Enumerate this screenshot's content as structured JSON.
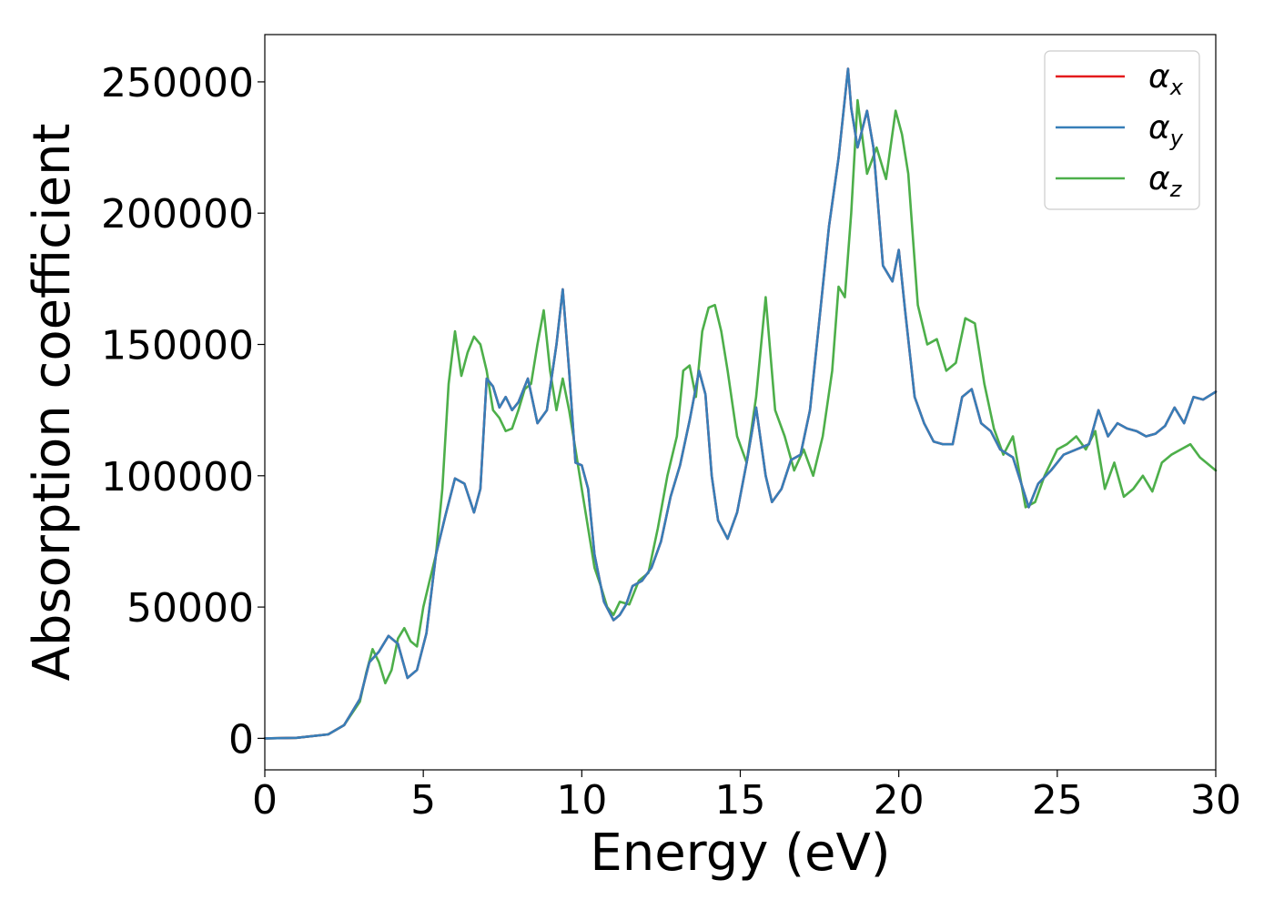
{
  "chart_data": {
    "type": "line",
    "xlabel": "Energy (eV)",
    "ylabel": "Absorption coefficient",
    "xlim": [
      0,
      30
    ],
    "ylim": [
      -12000,
      268000
    ],
    "xticks": [
      "0",
      "5",
      "10",
      "15",
      "20",
      "25",
      "30"
    ],
    "yticks": [
      "0",
      "50000",
      "100000",
      "150000",
      "200000",
      "250000"
    ],
    "grid": false,
    "legend_position": "top-right",
    "series": [
      {
        "name": "α_x",
        "label_main": "α",
        "label_sub": "x",
        "color": "#e41a1c",
        "x": [
          0,
          1,
          2,
          2.5,
          3,
          3.3,
          3.6,
          3.9,
          4.2,
          4.5,
          4.8,
          5.1,
          5.4,
          5.7,
          6,
          6.3,
          6.6,
          6.8,
          7,
          7.2,
          7.4,
          7.6,
          7.8,
          8,
          8.3,
          8.6,
          8.9,
          9.2,
          9.4,
          9.6,
          9.8,
          10,
          10.2,
          10.4,
          10.7,
          11,
          11.2,
          11.4,
          11.6,
          11.9,
          12.2,
          12.5,
          12.8,
          13.1,
          13.4,
          13.7,
          13.9,
          14.1,
          14.3,
          14.6,
          14.9,
          15.2,
          15.5,
          15.8,
          16,
          16.3,
          16.6,
          16.9,
          17.2,
          17.5,
          17.8,
          18.1,
          18.4,
          18.5,
          18.7,
          19,
          19.2,
          19.5,
          19.8,
          20,
          20.2,
          20.5,
          20.8,
          21.1,
          21.4,
          21.7,
          22,
          22.3,
          22.6,
          22.9,
          23.2,
          23.6,
          24.1,
          24.4,
          24.8,
          25.2,
          25.6,
          26,
          26.3,
          26.6,
          26.9,
          27.2,
          27.5,
          27.8,
          28.1,
          28.4,
          28.7,
          29,
          29.3,
          29.6,
          30
        ],
        "y": [
          0,
          200,
          1500,
          5000,
          15000,
          29000,
          33000,
          39000,
          36000,
          23000,
          26000,
          40000,
          70000,
          85000,
          99000,
          97000,
          86000,
          95000,
          137000,
          134000,
          126000,
          130000,
          125000,
          128000,
          137000,
          120000,
          125000,
          150000,
          171000,
          140000,
          105000,
          104000,
          95000,
          70000,
          52000,
          45000,
          47000,
          51000,
          58000,
          60000,
          65000,
          75000,
          92000,
          104000,
          121000,
          140000,
          131000,
          100000,
          83000,
          76000,
          86000,
          105000,
          126000,
          100000,
          90000,
          95000,
          106000,
          108000,
          125000,
          160000,
          195000,
          221000,
          255000,
          240000,
          225000,
          239000,
          225000,
          180000,
          174000,
          186000,
          163000,
          130000,
          120000,
          113000,
          112000,
          112000,
          130000,
          133000,
          120000,
          117000,
          110000,
          107000,
          88000,
          97000,
          102000,
          108000,
          110000,
          112000,
          125000,
          115000,
          120000,
          118000,
          117000,
          115000,
          116000,
          119000,
          126000,
          120000,
          130000,
          129000,
          132000
        ]
      },
      {
        "name": "α_y",
        "label_main": "α",
        "label_sub": "y",
        "color": "#377eb8",
        "x": [
          0,
          1,
          2,
          2.5,
          3,
          3.3,
          3.6,
          3.9,
          4.2,
          4.5,
          4.8,
          5.1,
          5.4,
          5.7,
          6,
          6.3,
          6.6,
          6.8,
          7,
          7.2,
          7.4,
          7.6,
          7.8,
          8,
          8.3,
          8.6,
          8.9,
          9.2,
          9.4,
          9.6,
          9.8,
          10,
          10.2,
          10.4,
          10.7,
          11,
          11.2,
          11.4,
          11.6,
          11.9,
          12.2,
          12.5,
          12.8,
          13.1,
          13.4,
          13.7,
          13.9,
          14.1,
          14.3,
          14.6,
          14.9,
          15.2,
          15.5,
          15.8,
          16,
          16.3,
          16.6,
          16.9,
          17.2,
          17.5,
          17.8,
          18.1,
          18.4,
          18.5,
          18.7,
          19,
          19.2,
          19.5,
          19.8,
          20,
          20.2,
          20.5,
          20.8,
          21.1,
          21.4,
          21.7,
          22,
          22.3,
          22.6,
          22.9,
          23.2,
          23.6,
          24.1,
          24.4,
          24.8,
          25.2,
          25.6,
          26,
          26.3,
          26.6,
          26.9,
          27.2,
          27.5,
          27.8,
          28.1,
          28.4,
          28.7,
          29,
          29.3,
          29.6,
          30
        ],
        "y": [
          0,
          200,
          1500,
          5000,
          15000,
          29000,
          33000,
          39000,
          36000,
          23000,
          26000,
          40000,
          70000,
          85000,
          99000,
          97000,
          86000,
          95000,
          137000,
          134000,
          126000,
          130000,
          125000,
          128000,
          137000,
          120000,
          125000,
          150000,
          171000,
          140000,
          105000,
          104000,
          95000,
          70000,
          52000,
          45000,
          47000,
          51000,
          58000,
          60000,
          65000,
          75000,
          92000,
          104000,
          121000,
          140000,
          131000,
          100000,
          83000,
          76000,
          86000,
          105000,
          126000,
          100000,
          90000,
          95000,
          106000,
          108000,
          125000,
          160000,
          195000,
          221000,
          255000,
          240000,
          225000,
          239000,
          225000,
          180000,
          174000,
          186000,
          163000,
          130000,
          120000,
          113000,
          112000,
          112000,
          130000,
          133000,
          120000,
          117000,
          110000,
          107000,
          88000,
          97000,
          102000,
          108000,
          110000,
          112000,
          125000,
          115000,
          120000,
          118000,
          117000,
          115000,
          116000,
          119000,
          126000,
          120000,
          130000,
          129000,
          132000
        ]
      },
      {
        "name": "α_z",
        "label_main": "α",
        "label_sub": "z",
        "color": "#4daf4a",
        "x": [
          0,
          1,
          2,
          2.5,
          3,
          3.2,
          3.4,
          3.6,
          3.8,
          4,
          4.2,
          4.4,
          4.6,
          4.8,
          5,
          5.2,
          5.4,
          5.6,
          5.8,
          6,
          6.2,
          6.4,
          6.6,
          6.8,
          7,
          7.2,
          7.4,
          7.6,
          7.8,
          8,
          8.2,
          8.4,
          8.6,
          8.8,
          9,
          9.2,
          9.4,
          9.6,
          9.8,
          10,
          10.2,
          10.4,
          10.6,
          10.8,
          11,
          11.2,
          11.5,
          11.8,
          12.1,
          12.4,
          12.7,
          13,
          13.2,
          13.4,
          13.6,
          13.8,
          14,
          14.2,
          14.4,
          14.6,
          14.9,
          15.2,
          15.5,
          15.8,
          16.1,
          16.4,
          16.7,
          17,
          17.3,
          17.6,
          17.9,
          18.1,
          18.3,
          18.5,
          18.7,
          19,
          19.3,
          19.6,
          19.9,
          20.1,
          20.3,
          20.6,
          20.9,
          21.2,
          21.5,
          21.8,
          22.1,
          22.4,
          22.7,
          23,
          23.3,
          23.6,
          24,
          24.3,
          24.6,
          25,
          25.3,
          25.6,
          25.9,
          26.2,
          26.5,
          26.8,
          27.1,
          27.4,
          27.7,
          28,
          28.3,
          28.6,
          28.9,
          29.2,
          29.5,
          30
        ],
        "y": [
          0,
          200,
          1500,
          5000,
          14000,
          25000,
          34000,
          29000,
          21000,
          26000,
          38000,
          42000,
          37000,
          35000,
          50000,
          60000,
          70000,
          95000,
          135000,
          155000,
          138000,
          147000,
          153000,
          150000,
          140000,
          125000,
          122000,
          117000,
          118000,
          125000,
          133000,
          135000,
          150000,
          163000,
          140000,
          125000,
          137000,
          125000,
          110000,
          95000,
          80000,
          65000,
          58000,
          50000,
          47000,
          52000,
          51000,
          60000,
          63000,
          80000,
          100000,
          115000,
          140000,
          142000,
          130000,
          155000,
          164000,
          165000,
          155000,
          140000,
          115000,
          105000,
          130000,
          168000,
          125000,
          115000,
          102000,
          110000,
          100000,
          115000,
          140000,
          172000,
          168000,
          200000,
          243000,
          215000,
          225000,
          213000,
          239000,
          230000,
          215000,
          165000,
          150000,
          152000,
          140000,
          143000,
          160000,
          158000,
          135000,
          118000,
          108000,
          115000,
          88000,
          90000,
          100000,
          110000,
          112000,
          115000,
          110000,
          117000,
          95000,
          105000,
          92000,
          95000,
          100000,
          94000,
          105000,
          108000,
          110000,
          112000,
          107000,
          102000
        ]
      }
    ]
  }
}
